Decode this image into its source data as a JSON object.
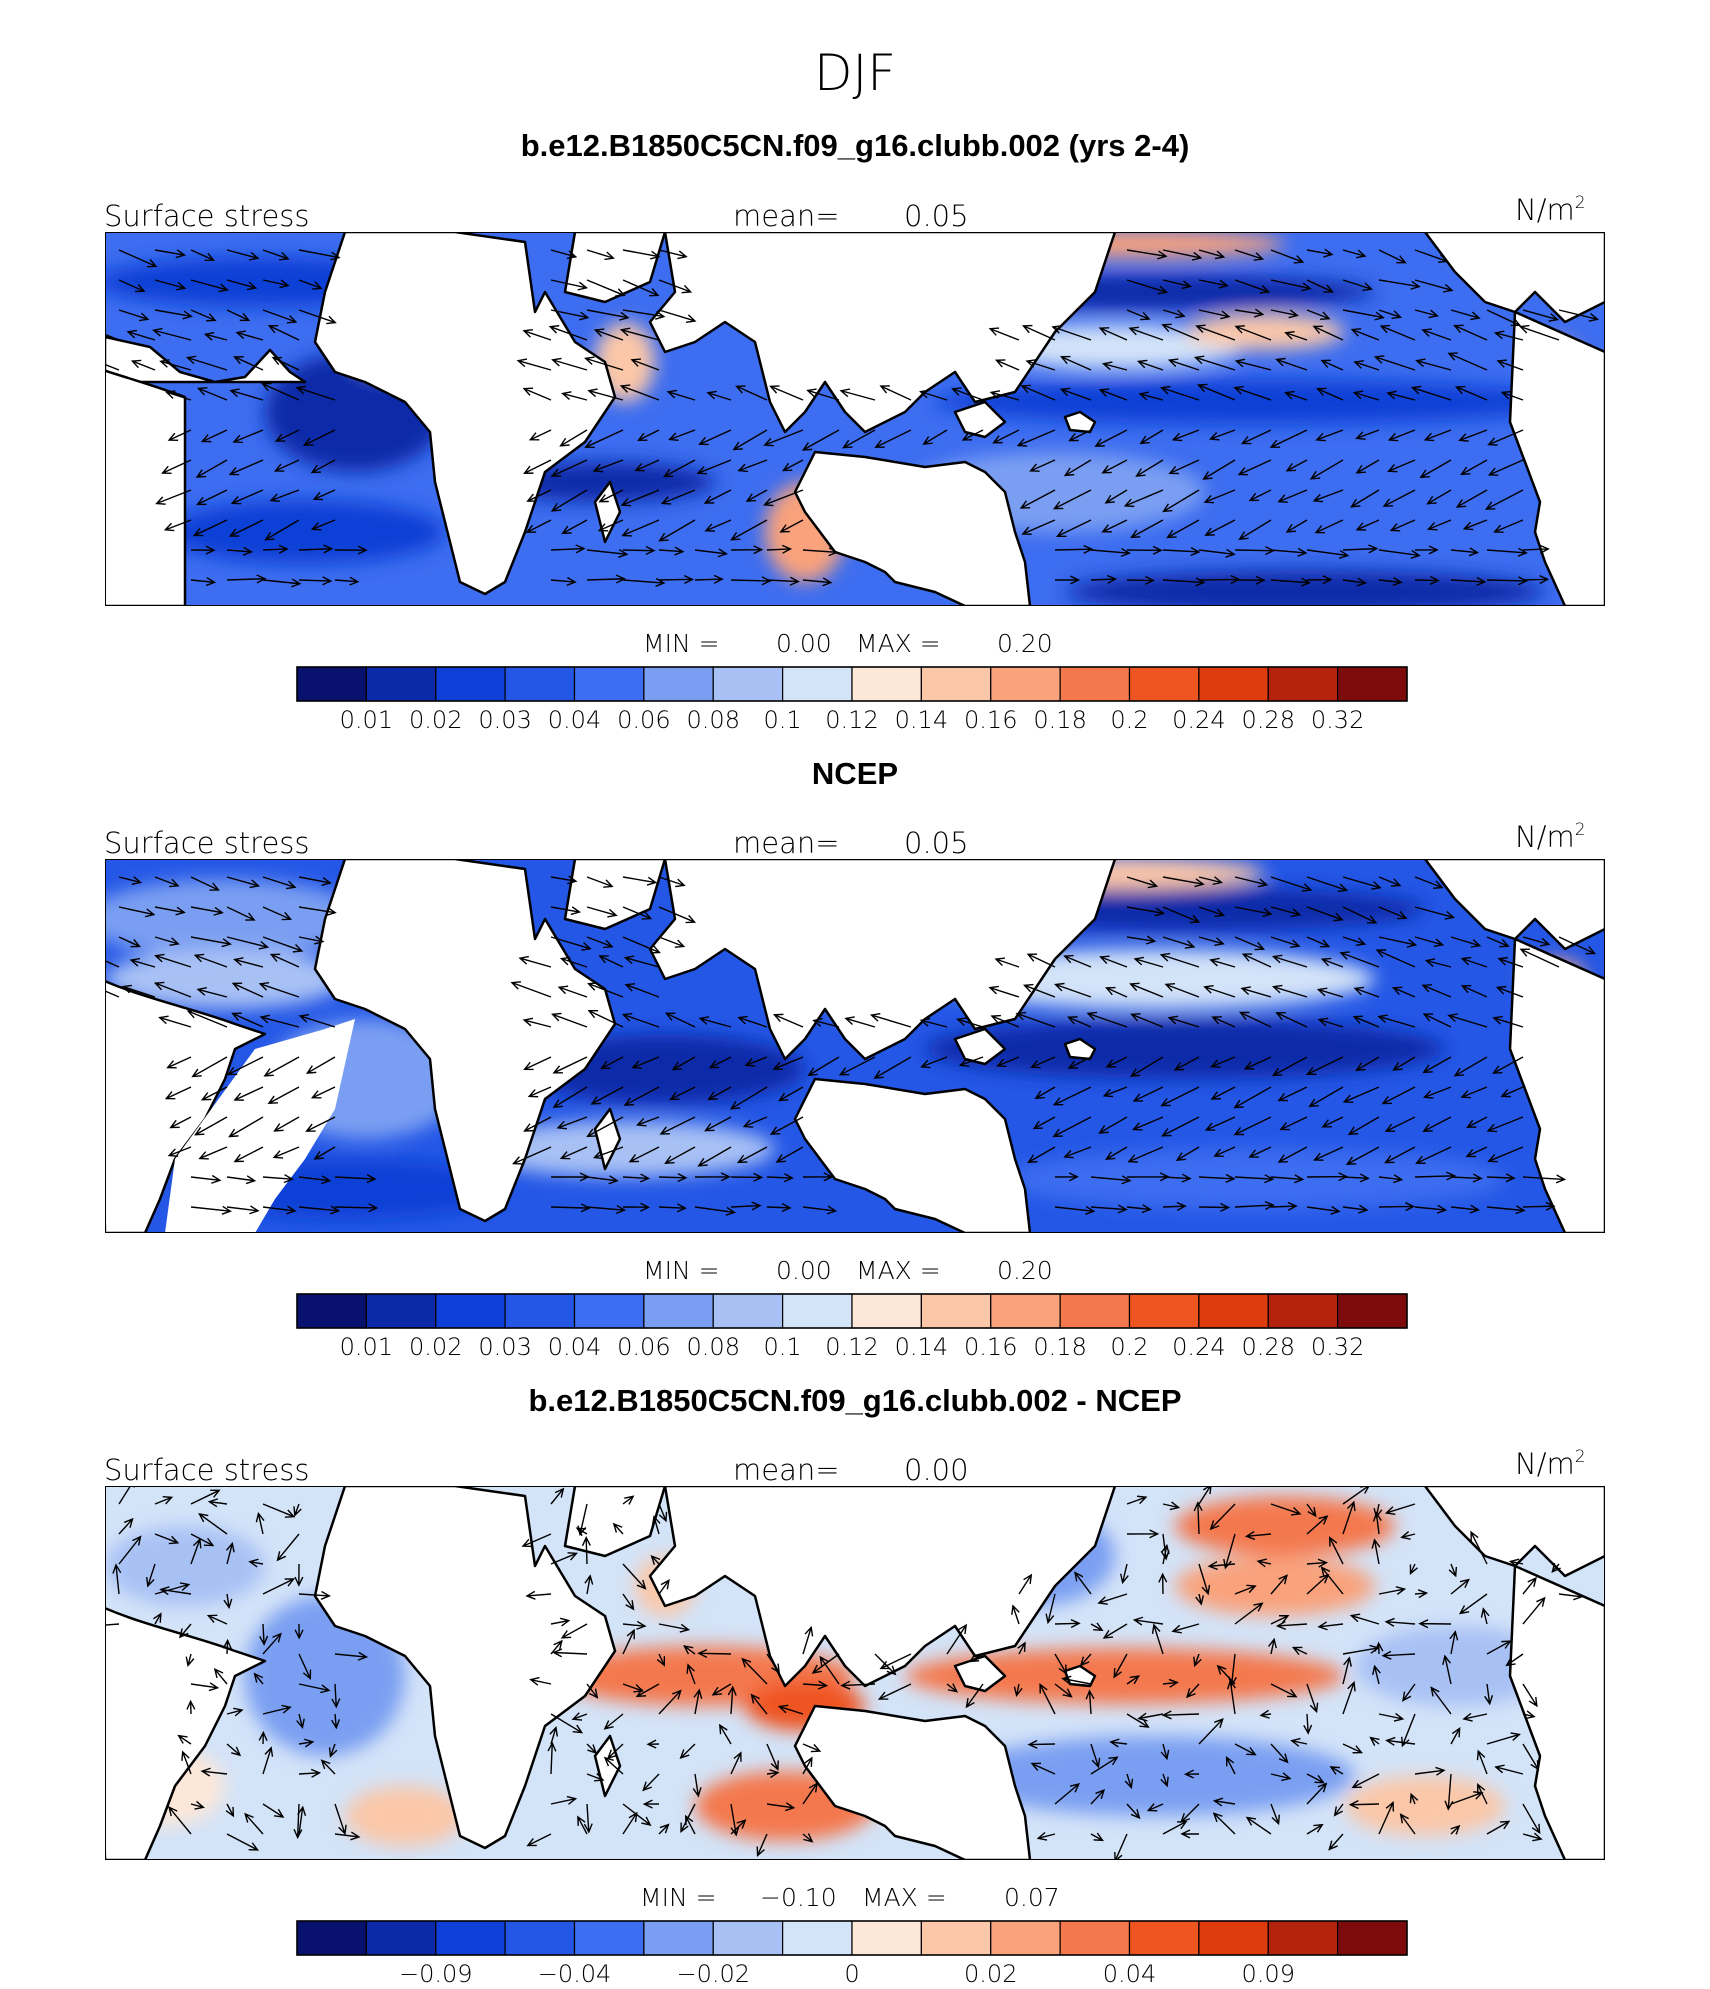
{
  "figure_title": "DJF",
  "chart_data": [
    {
      "type": "heatmap",
      "title": "b.e12.B1850C5CN.f09_g16.clubb.002 (yrs 2-4)",
      "left_label": "Surface stress",
      "mean_label": "mean=",
      "mean_value": "0.05",
      "units_label": "N/m",
      "units_exp": "2",
      "min_label": "MIN =",
      "min_value": "0.00",
      "max_label": "MAX =",
      "max_value": "0.20",
      "colorbar_ticks": [
        "0.01",
        "0.02",
        "0.03",
        "0.04",
        "0.06",
        "0.08",
        "0.1",
        "0.12",
        "0.14",
        "0.16",
        "0.18",
        "0.2",
        "0.24",
        "0.28",
        "0.32"
      ],
      "vectors": "wind stress arrows"
    },
    {
      "type": "heatmap",
      "title": "NCEP",
      "left_label": "Surface stress",
      "mean_label": "mean=",
      "mean_value": "0.05",
      "units_label": "N/m",
      "units_exp": "2",
      "min_label": "MIN =",
      "min_value": "0.00",
      "max_label": "MAX =",
      "max_value": "0.20",
      "colorbar_ticks": [
        "0.01",
        "0.02",
        "0.03",
        "0.04",
        "0.06",
        "0.08",
        "0.1",
        "0.12",
        "0.14",
        "0.16",
        "0.18",
        "0.2",
        "0.24",
        "0.28",
        "0.32"
      ],
      "vectors": "wind stress arrows"
    },
    {
      "type": "heatmap",
      "title": "b.e12.B1850C5CN.f09_g16.clubb.002 - NCEP",
      "left_label": "Surface stress",
      "mean_label": "mean=",
      "mean_value": "0.00",
      "units_label": "N/m",
      "units_exp": "2",
      "min_label": "MIN =",
      "min_value": "−0.10",
      "max_label": "MAX =",
      "max_value": "0.07",
      "colorbar_ticks": [
        "−0.09",
        "−0.04",
        "−0.02",
        "0",
        "0.02",
        "0.04",
        "0.09"
      ],
      "vectors": "difference arrows"
    }
  ],
  "colors": {
    "scale": [
      "#08126e",
      "#0b2aa9",
      "#0e3fd6",
      "#2457e6",
      "#3d6df0",
      "#7a9ff2",
      "#a8c1f5",
      "#d3e3f8",
      "#fde7d8",
      "#fbc7a8",
      "#f9a27c",
      "#f4784d",
      "#ef5520",
      "#de3c0c",
      "#b3220d",
      "#7e0b0b"
    ],
    "land": "#ffffff",
    "coast": "#000000"
  }
}
